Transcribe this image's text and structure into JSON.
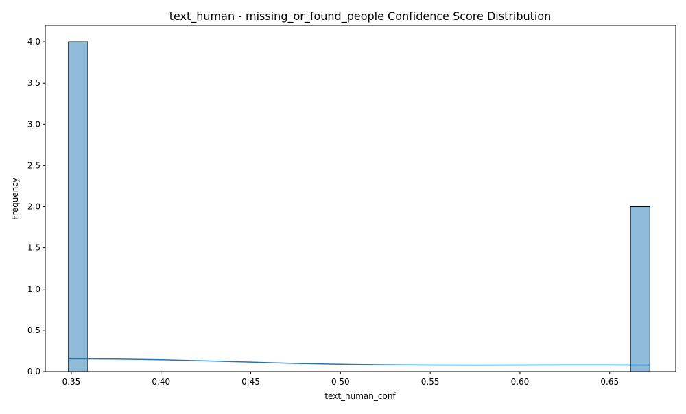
{
  "chart_data": {
    "type": "bar",
    "title": "text_human - missing_or_found_people Confidence Score Distribution",
    "xlabel": "text_human_conf",
    "ylabel": "Frequency",
    "xlim": [
      0.3355,
      0.6868
    ],
    "ylim": [
      0,
      4.2
    ],
    "x_ticks": [
      0.35,
      0.4,
      0.45,
      0.5,
      0.55,
      0.6,
      0.65
    ],
    "x_tick_labels": [
      "0.35",
      "0.40",
      "0.45",
      "0.50",
      "0.55",
      "0.60",
      "0.65"
    ],
    "y_ticks": [
      0.0,
      0.5,
      1.0,
      1.5,
      2.0,
      2.5,
      3.0,
      3.5,
      4.0
    ],
    "y_tick_labels": [
      "0.0",
      "0.5",
      "1.0",
      "1.5",
      "2.0",
      "2.5",
      "3.0",
      "3.5",
      "4.0"
    ],
    "grid": false,
    "bins": [
      {
        "x0": 0.3484,
        "x1": 0.3592,
        "count": 4
      },
      {
        "x0": 0.6616,
        "x1": 0.6724,
        "count": 2
      }
    ],
    "kde": {
      "x": [
        0.3484,
        0.375,
        0.4,
        0.425,
        0.45,
        0.475,
        0.5,
        0.525,
        0.55,
        0.575,
        0.6,
        0.625,
        0.65,
        0.6724
      ],
      "y": [
        0.155,
        0.152,
        0.143,
        0.13,
        0.115,
        0.1,
        0.089,
        0.082,
        0.079,
        0.078,
        0.079,
        0.08,
        0.08,
        0.078
      ]
    },
    "colors": {
      "bar_fill": "#8fbbd9",
      "bar_edge": "#000000",
      "kde_line": "#1f77b4",
      "axes": "#000000"
    }
  }
}
